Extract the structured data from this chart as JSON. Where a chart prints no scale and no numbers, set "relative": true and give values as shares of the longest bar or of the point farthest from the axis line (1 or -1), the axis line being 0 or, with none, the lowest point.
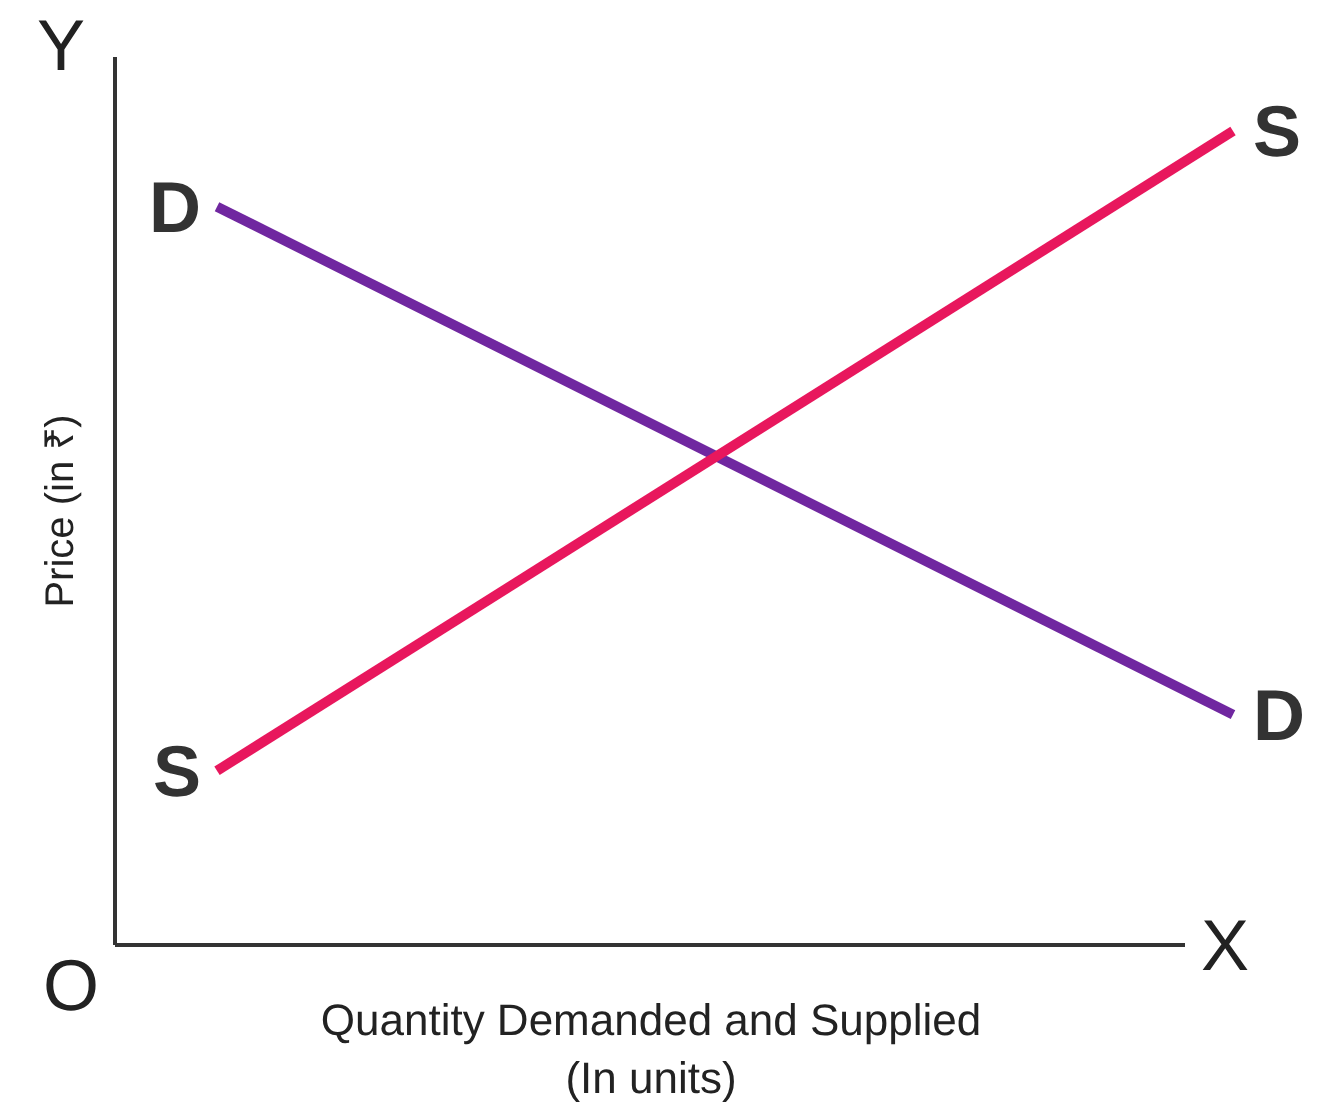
{
  "chart_data": {
    "type": "line",
    "relative": true,
    "xlabel": "Quantity Demanded and Supplied\n(In units)",
    "ylabel": "Price (in ₹)",
    "categories": [
      null,
      null
    ],
    "series": [
      {
        "name": "D",
        "color": "#7027a0",
        "values": [
          0.907,
          0.283
        ]
      },
      {
        "name": "S",
        "color": "#e8175d",
        "values": [
          0.214,
          1.0
        ]
      }
    ],
    "annotations": [
      "Y",
      "X",
      "O"
    ]
  }
}
